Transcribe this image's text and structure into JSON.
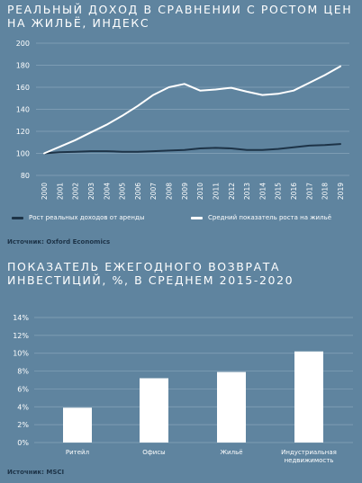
{
  "charts": [
    {
      "title": "РЕАЛЬНЫЙ ДОХОД В СРАВНЕНИИ С РОСТОМ ЦЕН НА ЖИЛЬЁ, ИНДЕКС",
      "source": "Источник: Oxford Economics"
    },
    {
      "title": "ПОКАЗАТЕЛЬ ЕЖЕГОДНОГО ВОЗВРАТА ИНВЕСТИЦИЙ, %,  В СРЕДНЕМ 2015-2020",
      "source": "Источник: MSCI"
    }
  ],
  "colors": {
    "background": "#5f849f",
    "grid": "#87a4ba",
    "income_line": "#1d3347",
    "price_line": "#ffffff",
    "bars": "#ffffff",
    "axis_text": "#ffffff",
    "source_text": "#1d3347"
  },
  "chart_data": [
    {
      "type": "line",
      "title": "РЕАЛЬНЫЙ ДОХОД В СРАВНЕНИИ С РОСТОМ ЦЕН НА ЖИЛЬЁ, ИНДЕКС",
      "x": [
        "2000",
        "2001",
        "2002",
        "2003",
        "2004",
        "2005",
        "2006",
        "2007",
        "2008",
        "2009",
        "2010",
        "2011",
        "2012",
        "2013",
        "2014",
        "2015",
        "2016",
        "2017",
        "2018",
        "2019"
      ],
      "series": [
        {
          "name": "Рост реальных доходов от аренды",
          "values": [
            100,
            101,
            101.5,
            102,
            102,
            101.5,
            101.5,
            102,
            102.5,
            103,
            104.5,
            105,
            104.5,
            103,
            103,
            104,
            105.5,
            107,
            107.5,
            108.5
          ]
        },
        {
          "name": "Средний показатель роста на жильё",
          "values": [
            100,
            106,
            112,
            119,
            126,
            134,
            143,
            153,
            160,
            163,
            157,
            158,
            159.5,
            156,
            153,
            154,
            157,
            164,
            171,
            179
          ]
        }
      ],
      "ylim": [
        80,
        200
      ],
      "yticks": [
        80,
        100,
        120,
        140,
        160,
        180,
        200
      ],
      "grid": true,
      "legend_position": "bottom"
    },
    {
      "type": "bar",
      "title": "ПОКАЗАТЕЛЬ ЕЖЕГОДНОГО ВОЗВРАТА ИНВЕСТИЦИЙ, %,  В СРЕДНЕМ 2015-2020",
      "categories": [
        "Ритейл",
        "Офисы",
        "Жильё",
        "Индустриальная недвижимость"
      ],
      "values": [
        3.9,
        7.2,
        7.9,
        10.2
      ],
      "ylim": [
        0,
        14
      ],
      "yticks": [
        "0%",
        "2%",
        "4%",
        "6%",
        "8%",
        "10%",
        "12%",
        "14%"
      ],
      "grid": true
    }
  ]
}
